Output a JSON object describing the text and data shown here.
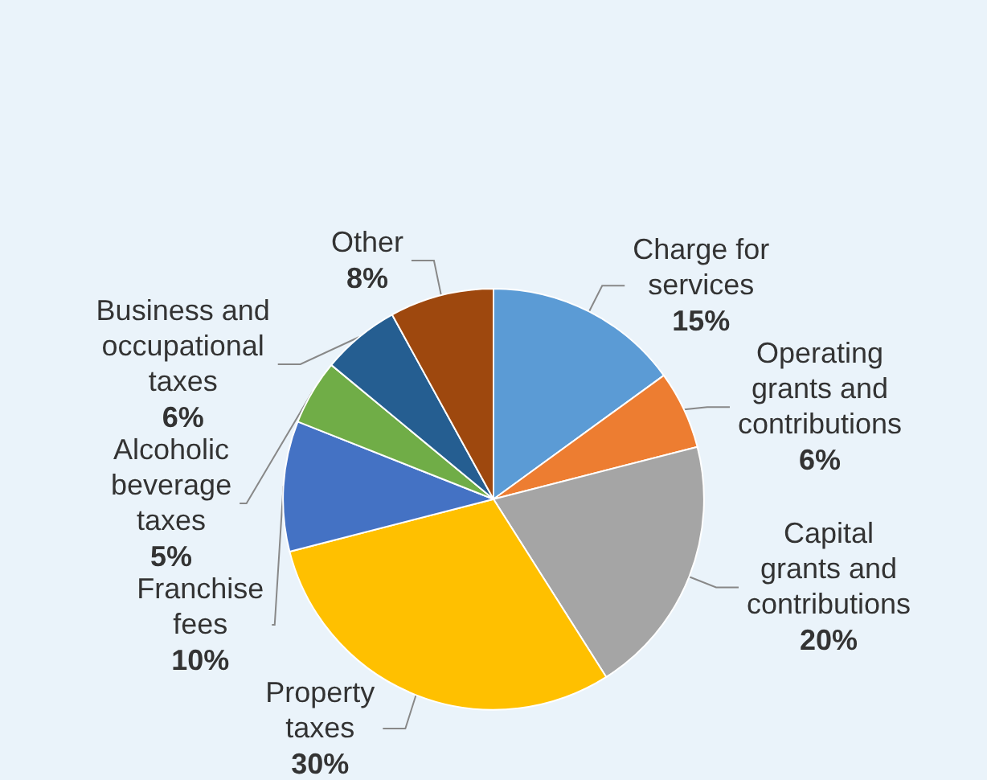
{
  "chart_data": {
    "type": "pie",
    "categories": [
      "Charge for services",
      "Operating grants and contributions",
      "Capital grants and contributions",
      "Property taxes",
      "Franchise fees",
      "Alcoholic beverage taxes",
      "Business and occupational taxes",
      "Other"
    ],
    "values": [
      15,
      6,
      20,
      30,
      10,
      5,
      6,
      8
    ],
    "value_labels": [
      "15%",
      "6%",
      "20%",
      "30%",
      "10%",
      "5%",
      "6%",
      "8%"
    ],
    "colors": [
      "#5b9bd5",
      "#ed7d31",
      "#a5a5a5",
      "#ffc000",
      "#4472c4",
      "#70ad47",
      "#255e91",
      "#9e480e"
    ],
    "legend": false
  }
}
